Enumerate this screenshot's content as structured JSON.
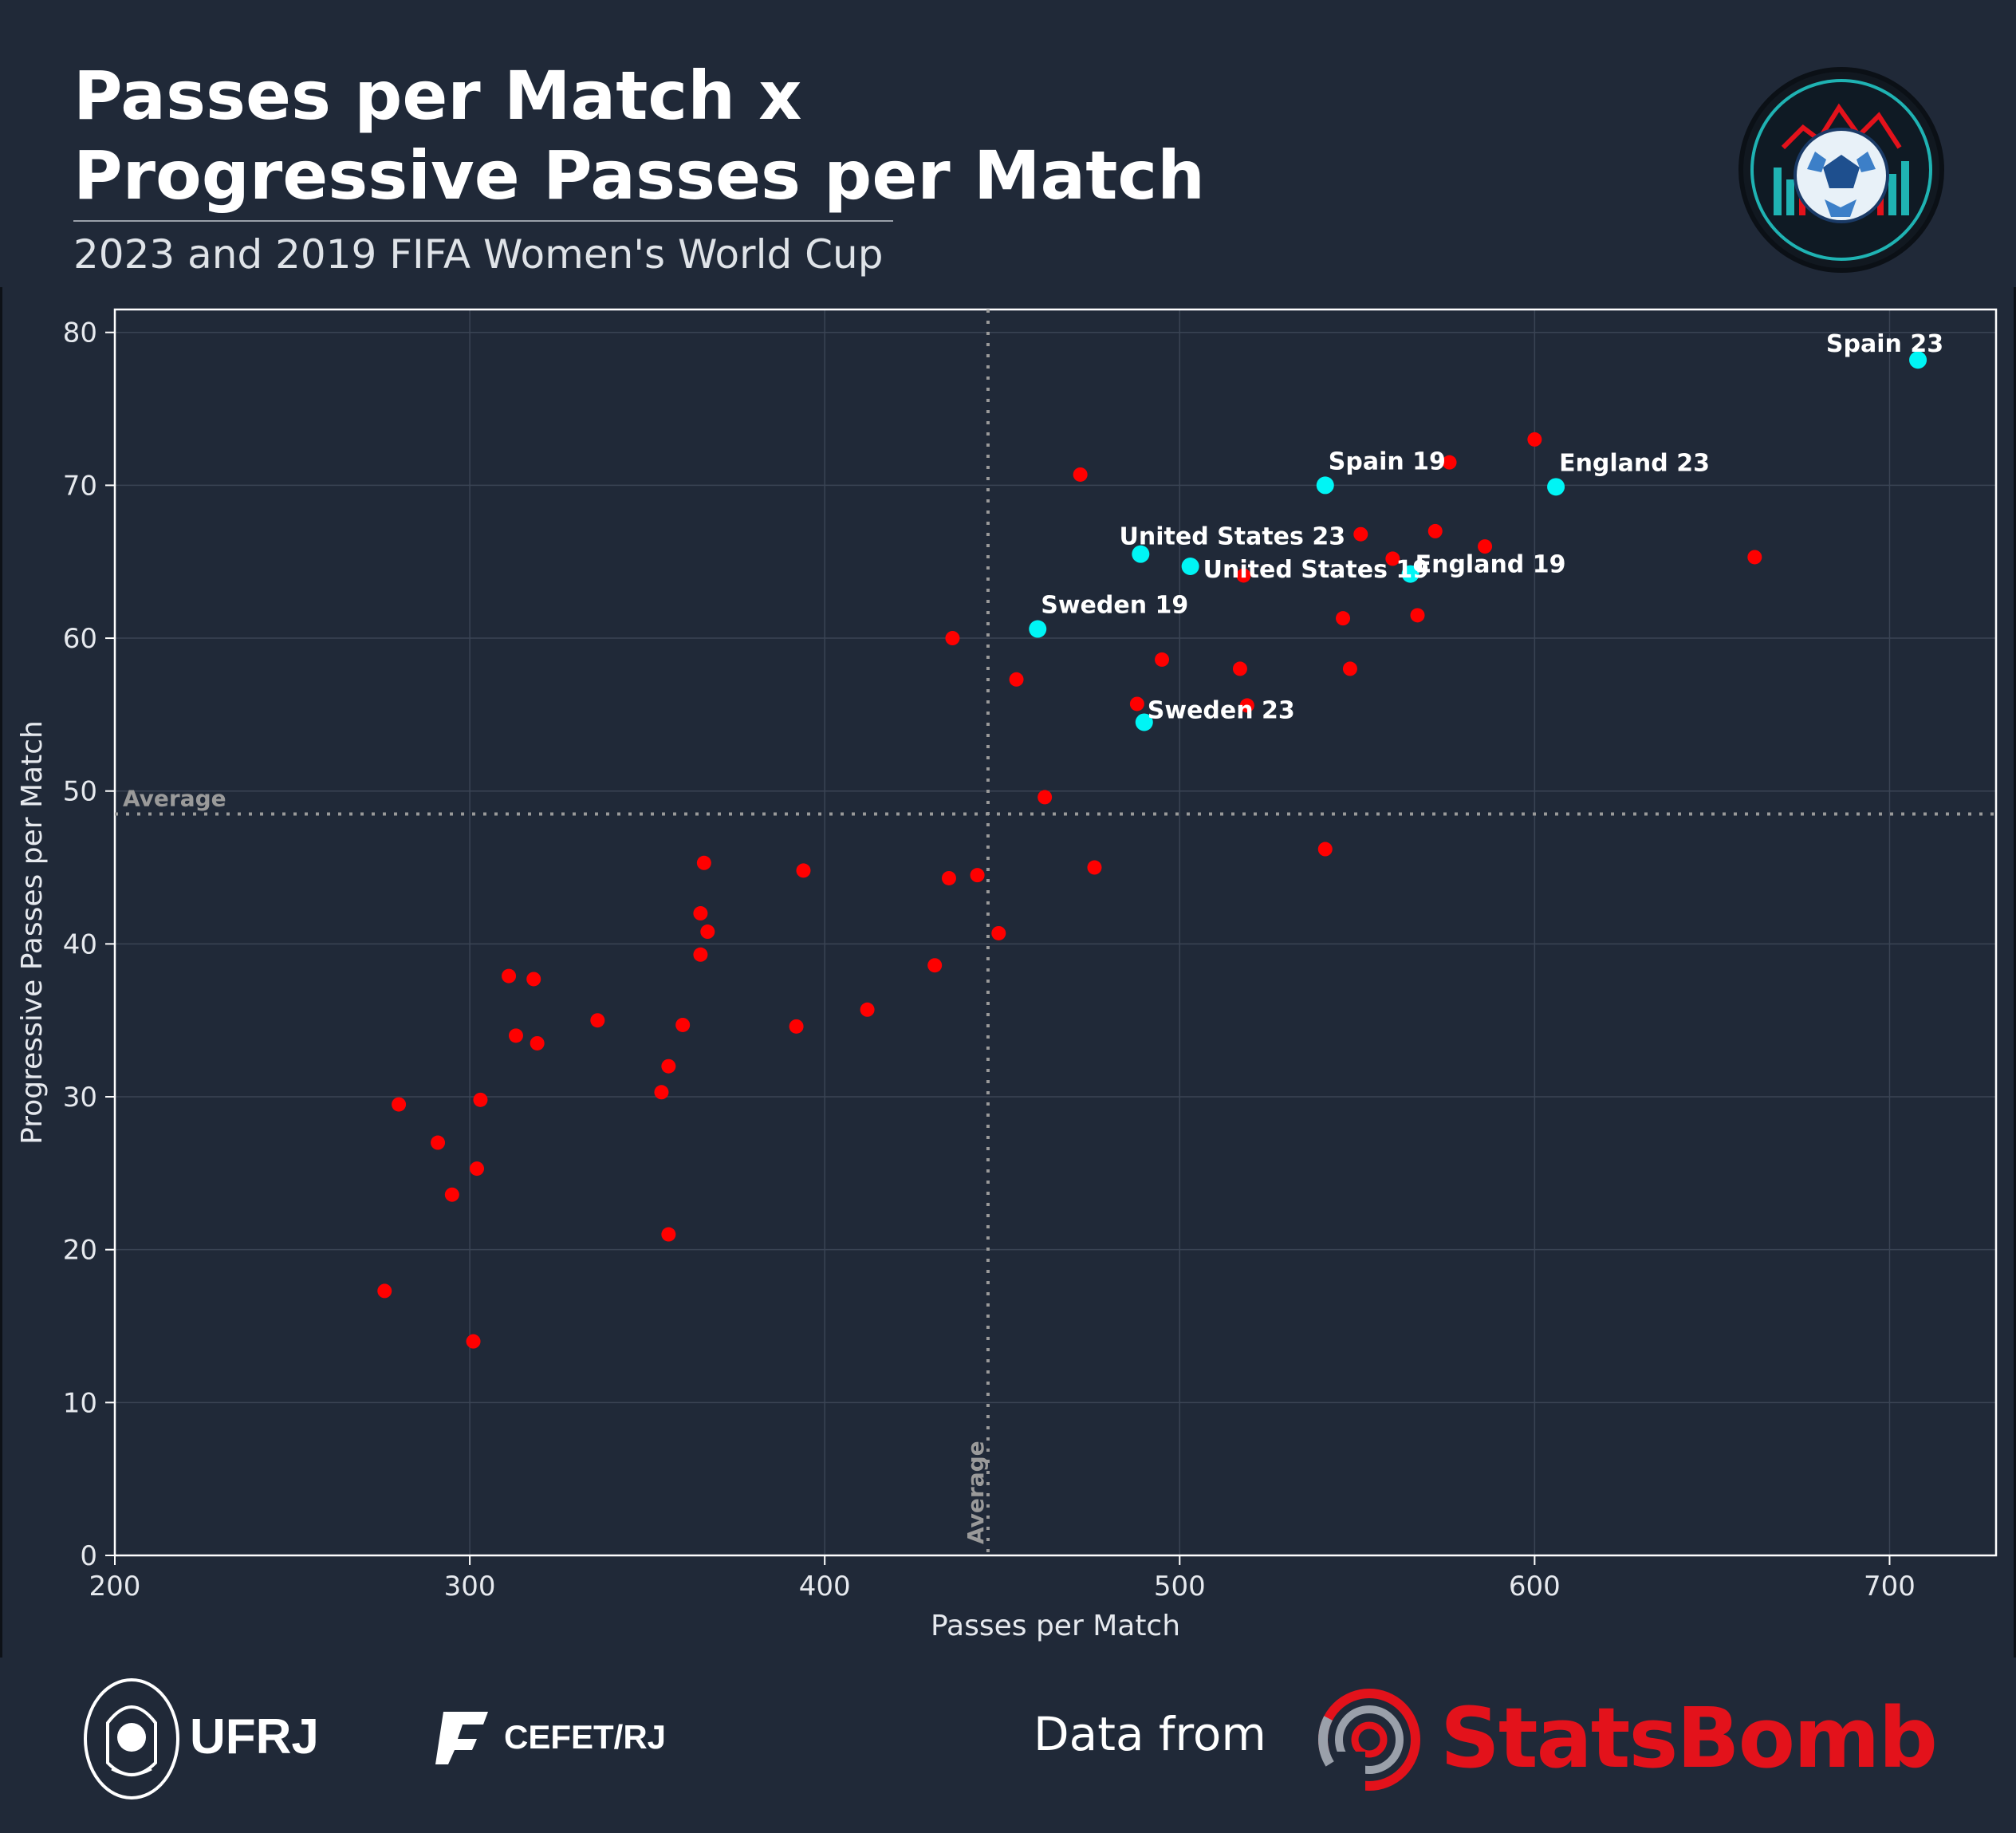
{
  "header": {
    "title": "Passes per Match x Progressive Passes per Match",
    "subtitle": "2023 and 2019 FIFA Women's World Cup"
  },
  "footer": {
    "ufrj_label": "UFRJ",
    "cefet_label": "CEFET/RJ",
    "data_from_label": "Data from",
    "statsbomb_label": "StatsBomb"
  },
  "colors": {
    "background": "#1f2838",
    "other_teams": "#ff0000",
    "highlighted_teams": "#00f5f5",
    "average_line": "#9a9a9a",
    "brand_red": "#e3121b"
  },
  "icons": {
    "badge": "soccer-ball-analytics-icon",
    "ufrj": "ufrj-crest-icon",
    "cefet": "cefet-logo-icon",
    "statsbomb": "statsbomb-target-icon"
  },
  "chart_data": {
    "type": "scatter",
    "title": "Passes per Match x Progressive Passes per Match",
    "subtitle": "2023 and 2019 FIFA Women's World Cup",
    "xlabel": "Passes per Match",
    "ylabel": "Progressive Passes per Match",
    "xlim": [
      200,
      730
    ],
    "ylim": [
      0,
      81.5
    ],
    "xticks": [
      200,
      300,
      400,
      500,
      600,
      700
    ],
    "yticks": [
      0,
      10,
      20,
      30,
      40,
      50,
      60,
      70,
      80
    ],
    "grid": true,
    "average": {
      "x": 446,
      "y": 48.5,
      "x_label": "Average",
      "y_label": "Average"
    },
    "highlighted": [
      {
        "label": "Spain 23",
        "x": 708,
        "y": 78.2
      },
      {
        "label": "Spain 19",
        "x": 541,
        "y": 70.0
      },
      {
        "label": "England 23",
        "x": 606,
        "y": 69.9
      },
      {
        "label": "United States 23",
        "x": 489,
        "y": 65.5
      },
      {
        "label": "United States 19",
        "x": 503,
        "y": 64.7
      },
      {
        "label": "England 19",
        "x": 565,
        "y": 64.2
      },
      {
        "label": "Sweden 19",
        "x": 460,
        "y": 60.6
      },
      {
        "label": "Sweden 23",
        "x": 490,
        "y": 54.5
      }
    ],
    "others": [
      [
        276,
        17.3
      ],
      [
        280,
        29.5
      ],
      [
        291,
        27.0
      ],
      [
        295,
        23.6
      ],
      [
        301,
        14.0
      ],
      [
        302,
        25.3
      ],
      [
        303,
        29.8
      ],
      [
        311,
        37.9
      ],
      [
        313,
        34.0
      ],
      [
        318,
        37.7
      ],
      [
        319,
        33.5
      ],
      [
        336,
        35.0
      ],
      [
        354,
        30.3
      ],
      [
        356,
        32.0
      ],
      [
        356,
        21.0
      ],
      [
        360,
        34.7
      ],
      [
        365,
        39.3
      ],
      [
        365,
        42.0
      ],
      [
        366,
        45.3
      ],
      [
        367,
        40.8
      ],
      [
        392,
        34.6
      ],
      [
        394,
        44.8
      ],
      [
        412,
        35.7
      ],
      [
        431,
        38.6
      ],
      [
        435,
        44.3
      ],
      [
        436,
        60.0
      ],
      [
        443,
        44.5
      ],
      [
        449,
        40.7
      ],
      [
        454,
        57.3
      ],
      [
        462,
        49.6
      ],
      [
        472,
        70.7
      ],
      [
        476,
        45.0
      ],
      [
        488,
        55.7
      ],
      [
        495,
        58.6
      ],
      [
        517,
        58.0
      ],
      [
        518,
        64.1
      ],
      [
        519,
        55.6
      ],
      [
        541,
        46.2
      ],
      [
        546,
        61.3
      ],
      [
        548,
        58.0
      ],
      [
        551,
        66.8
      ],
      [
        560,
        65.2
      ],
      [
        567,
        61.5
      ],
      [
        572,
        67.0
      ],
      [
        576,
        71.5
      ],
      [
        586,
        66.0
      ],
      [
        600,
        73.0
      ],
      [
        662,
        65.3
      ]
    ]
  }
}
